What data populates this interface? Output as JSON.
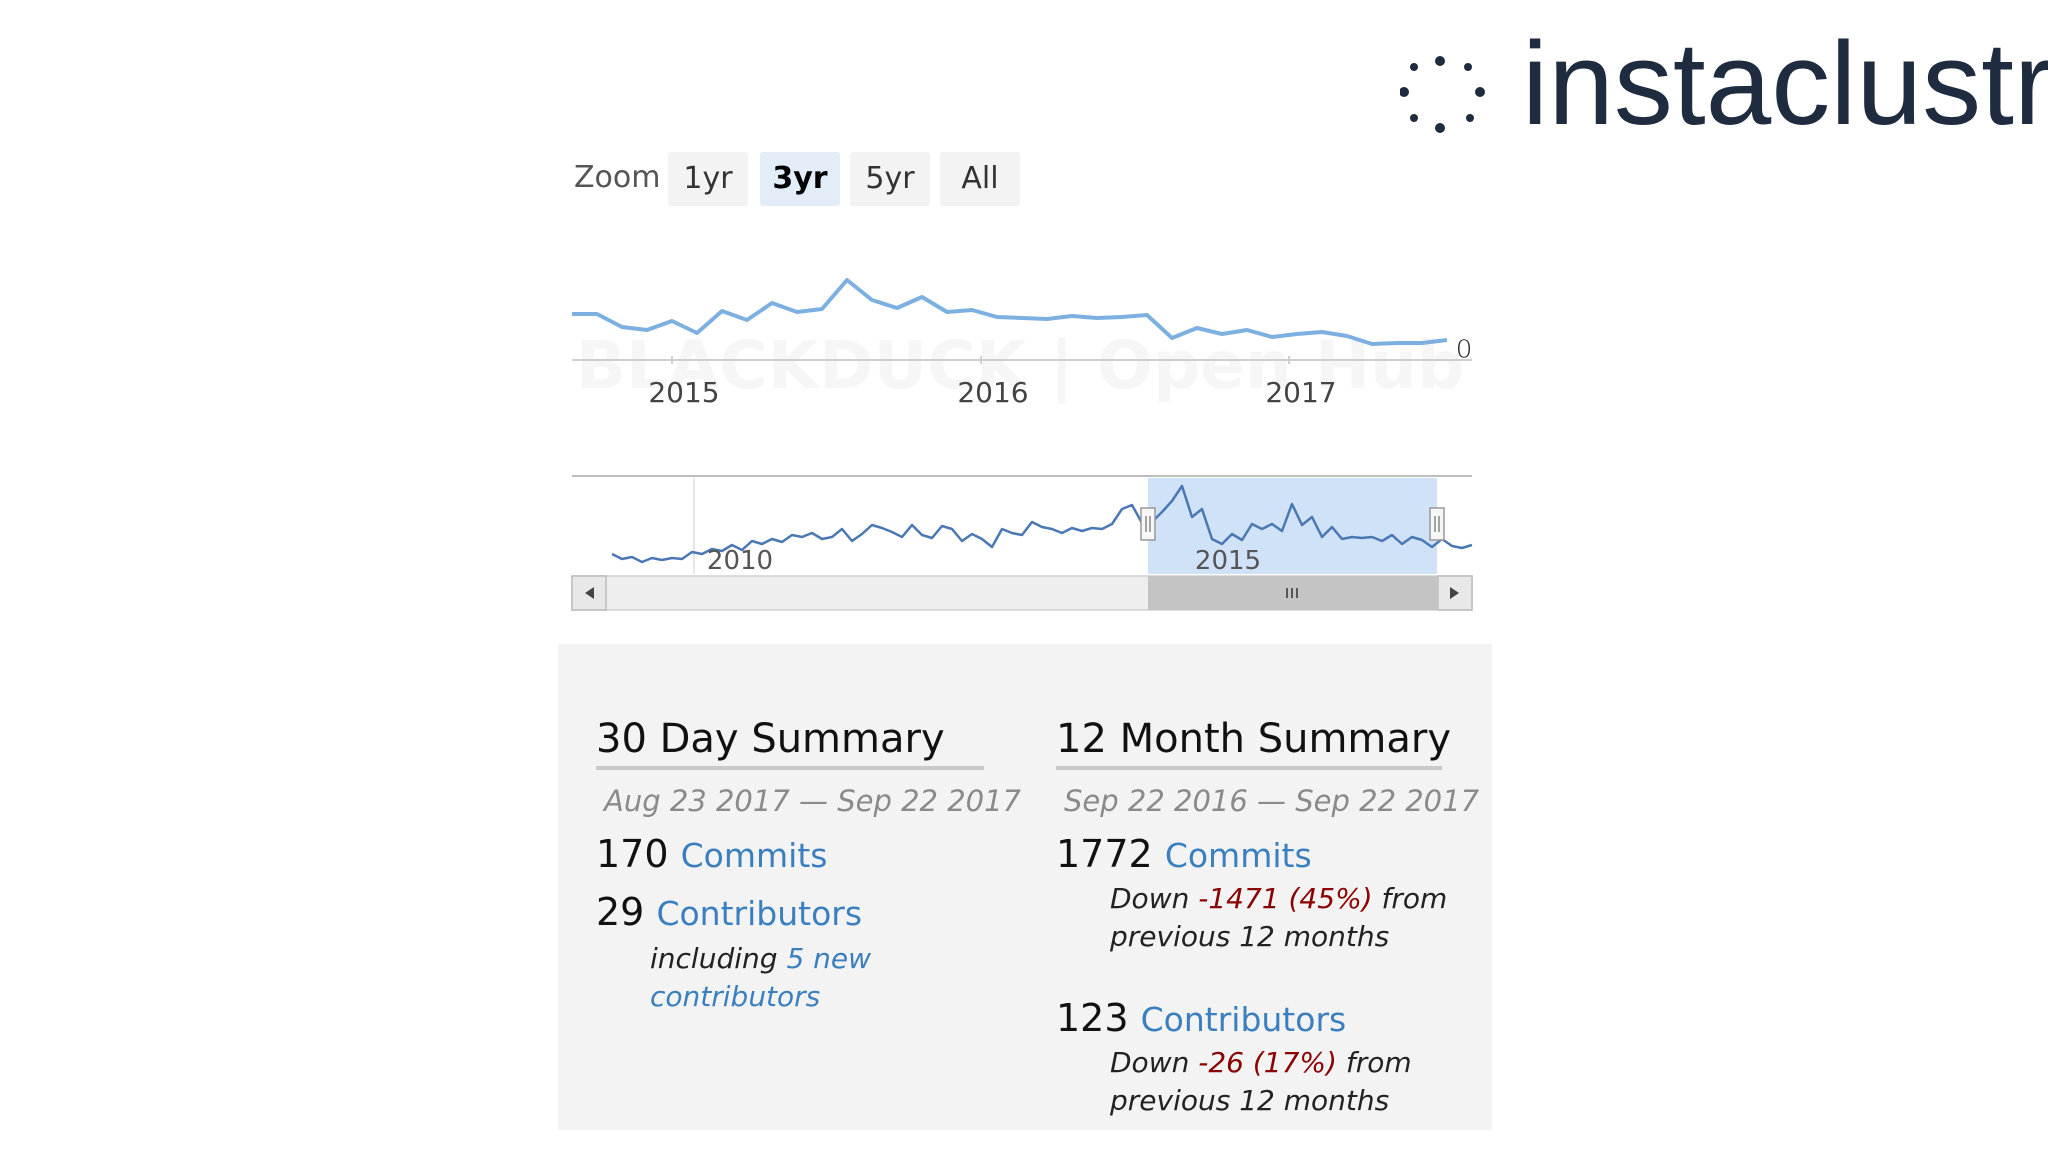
{
  "logo": {
    "text": "instaclustr",
    "icon": "dotted-circle-icon"
  },
  "zoom": {
    "label": "Zoom",
    "options": [
      "1yr",
      "3yr",
      "5yr",
      "All"
    ],
    "selected": "3yr"
  },
  "main_chart": {
    "x_ticks": [
      "2015",
      "2016",
      "2017"
    ],
    "end_value_label": "0",
    "line_color": "#7cb0e0"
  },
  "navigator": {
    "x_ticks": [
      "2010",
      "2015"
    ],
    "selection_fill": "#cfe2f7",
    "line_color": "#4a78b4"
  },
  "watermark": "BLACKDUCK | Open Hub",
  "summary_30": {
    "title": "30 Day Summary",
    "range": "Aug 23 2017 — Sep 22 2017",
    "commits_count": "170",
    "commits_label": "Commits",
    "contributors_count": "29",
    "contributors_label": "Contributors",
    "including": "including",
    "new_contributors_1": "5 new",
    "new_contributors_2": "contributors"
  },
  "summary_12": {
    "title": "12 Month Summary",
    "range": "Sep 22 2016 — Sep 22 2017",
    "commits_count": "1772",
    "commits_label": "Commits",
    "commits_down_word": "Down",
    "commits_delta": "-1471 (45%)",
    "commits_from": "from",
    "commits_prev": "previous 12 months",
    "contributors_count": "123",
    "contributors_label": "Contributors",
    "contributors_down_word": "Down",
    "contributors_delta": "-26 (17%)",
    "contributors_from": "from",
    "contributors_prev": "previous 12 months"
  }
}
